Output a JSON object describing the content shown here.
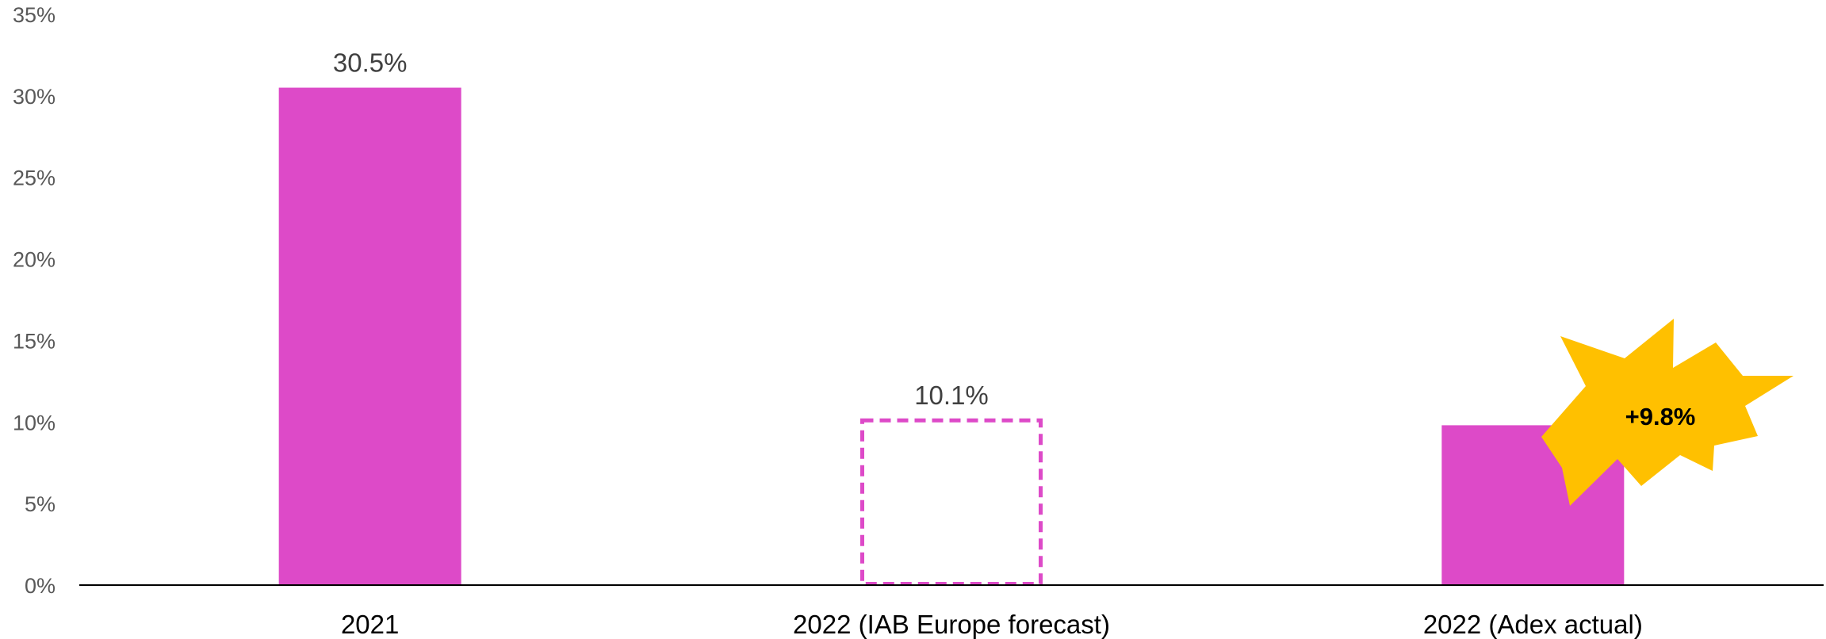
{
  "chart_data": {
    "type": "bar",
    "title": "",
    "xlabel": "",
    "ylabel": "",
    "categories": [
      "2021",
      "2022 (IAB Europe forecast)",
      "2022 (Adex actual)"
    ],
    "values": [
      30.5,
      10.1,
      9.8
    ],
    "bar_styles": [
      "solid",
      "dashed-outline",
      "solid"
    ],
    "data_labels": [
      "30.5%",
      "10.1%",
      ""
    ],
    "ylim": [
      0,
      35
    ],
    "yticks": [
      0,
      5,
      10,
      15,
      20,
      25,
      30,
      35
    ],
    "ytick_labels": [
      "0%",
      "5%",
      "10%",
      "15%",
      "20%",
      "25%",
      "30%",
      "35%"
    ],
    "grid": false,
    "legend": "none",
    "bar_color": "#DD4AC8",
    "axis_color": "#000000",
    "annotation": {
      "text": "+9.8%",
      "shape": "explosion-burst",
      "fill": "#FFC000",
      "category_index": 2
    }
  }
}
